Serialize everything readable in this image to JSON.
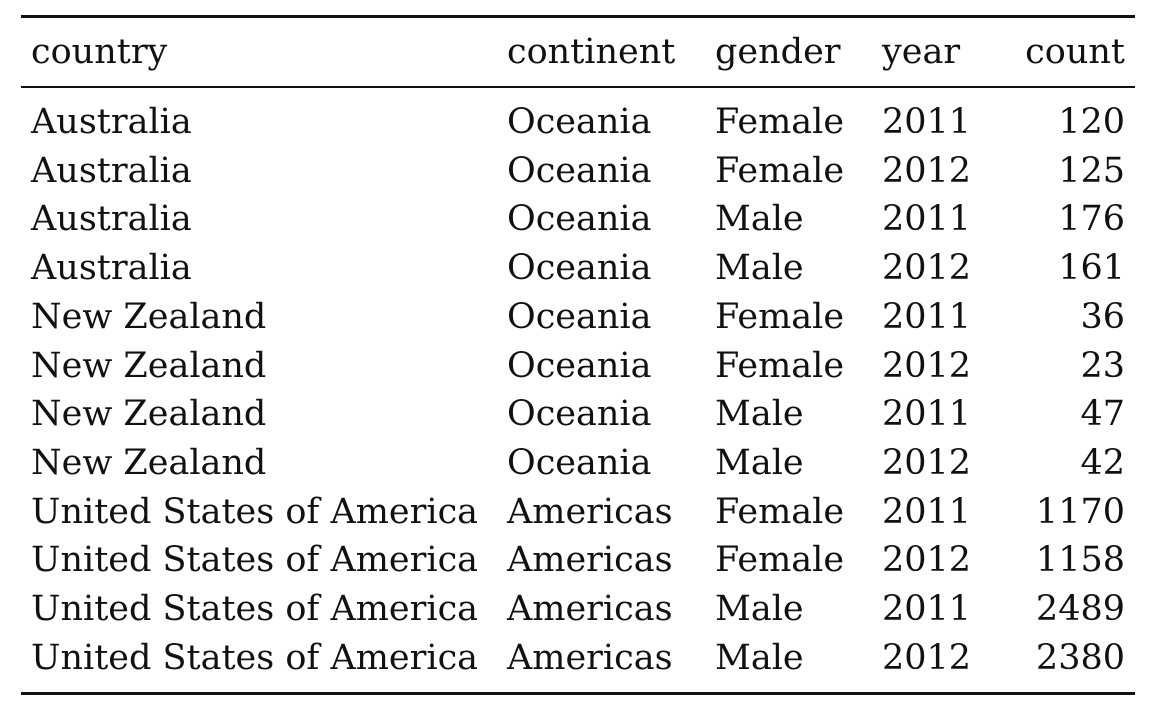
{
  "table": {
    "headers": [
      "country",
      "continent",
      "gender",
      "year",
      "count"
    ],
    "rows": [
      [
        "Australia",
        "Oceania",
        "Female",
        "2011",
        "120"
      ],
      [
        "Australia",
        "Oceania",
        "Female",
        "2012",
        "125"
      ],
      [
        "Australia",
        "Oceania",
        "Male",
        "2011",
        "176"
      ],
      [
        "Australia",
        "Oceania",
        "Male",
        "2012",
        "161"
      ],
      [
        "New Zealand",
        "Oceania",
        "Female",
        "2011",
        "36"
      ],
      [
        "New Zealand",
        "Oceania",
        "Female",
        "2012",
        "23"
      ],
      [
        "New Zealand",
        "Oceania",
        "Male",
        "2011",
        "47"
      ],
      [
        "New Zealand",
        "Oceania",
        "Male",
        "2012",
        "42"
      ],
      [
        "United States of America",
        "Americas",
        "Female",
        "2011",
        "1170"
      ],
      [
        "United States of America",
        "Americas",
        "Female",
        "2012",
        "1158"
      ],
      [
        "United States of America",
        "Americas",
        "Male",
        "2011",
        "2489"
      ],
      [
        "United States of America",
        "Americas",
        "Male",
        "2012",
        "2380"
      ]
    ]
  }
}
